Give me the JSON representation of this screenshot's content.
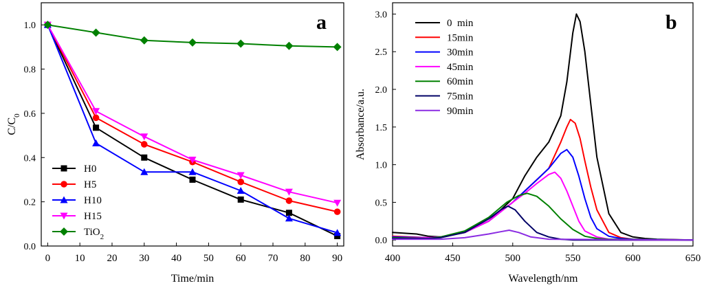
{
  "chart_data": [
    {
      "type": "line",
      "panel_label": "a",
      "xlabel": "Time/min",
      "ylabel": "C/C",
      "ylabel_sub": "0",
      "xlim": [
        -2,
        92
      ],
      "ylim": [
        0,
        1.1
      ],
      "xticks": [
        0,
        10,
        20,
        30,
        40,
        50,
        60,
        70,
        80,
        90
      ],
      "yticks": [
        0.0,
        0.2,
        0.4,
        0.6,
        0.8,
        1.0
      ],
      "ytick_labels": [
        "0.0",
        "0.2",
        "0.4",
        "0.6",
        "0.8",
        "1.0"
      ],
      "legend_position": "bottom-left",
      "series": [
        {
          "name": "H0",
          "color": "#000000",
          "marker": "square",
          "x": [
            0,
            15,
            30,
            45,
            60,
            75,
            90
          ],
          "values": [
            1.0,
            0.535,
            0.4,
            0.3,
            0.21,
            0.15,
            0.045
          ]
        },
        {
          "name": "H5",
          "color": "#ff0000",
          "marker": "circle",
          "x": [
            0,
            15,
            30,
            45,
            60,
            75,
            90
          ],
          "values": [
            1.0,
            0.58,
            0.46,
            0.38,
            0.29,
            0.205,
            0.155
          ]
        },
        {
          "name": "H10",
          "color": "#0000ff",
          "marker": "triangle-up",
          "x": [
            0,
            15,
            30,
            45,
            60,
            75,
            90
          ],
          "values": [
            1.0,
            0.465,
            0.335,
            0.335,
            0.25,
            0.125,
            0.06
          ]
        },
        {
          "name": "H15",
          "color": "#ff00ff",
          "marker": "triangle-down",
          "x": [
            0,
            15,
            30,
            45,
            60,
            75,
            90
          ],
          "values": [
            1.0,
            0.61,
            0.495,
            0.39,
            0.32,
            0.245,
            0.195
          ]
        },
        {
          "name": "TiO",
          "name_sub": "2",
          "color": "#008000",
          "marker": "diamond",
          "x": [
            0,
            15,
            30,
            45,
            60,
            75,
            90
          ],
          "values": [
            1.0,
            0.965,
            0.93,
            0.92,
            0.915,
            0.905,
            0.9
          ]
        }
      ]
    },
    {
      "type": "line",
      "panel_label": "b",
      "xlabel": "Wavelength/nm",
      "ylabel": "Absorbance/a.u.",
      "xlim": [
        400,
        650
      ],
      "ylim": [
        -0.08,
        3.15
      ],
      "xticks": [
        400,
        450,
        500,
        550,
        600,
        650
      ],
      "yticks": [
        0.0,
        0.5,
        1.0,
        1.5,
        2.0,
        2.5,
        3.0
      ],
      "ytick_labels": [
        "0.0",
        "0.5",
        "1.0",
        "1.5",
        "2.0",
        "2.5",
        "3.0"
      ],
      "legend_position": "top-left",
      "series": [
        {
          "name": "0  min",
          "color": "#000000",
          "x": [
            400,
            420,
            430,
            440,
            460,
            480,
            500,
            510,
            520,
            530,
            540,
            545,
            550,
            553,
            556,
            560,
            565,
            570,
            580,
            590,
            600,
            610,
            620,
            650
          ],
          "values": [
            0.1,
            0.08,
            0.05,
            0.04,
            0.1,
            0.25,
            0.55,
            0.85,
            1.1,
            1.3,
            1.65,
            2.1,
            2.75,
            3.0,
            2.9,
            2.5,
            1.8,
            1.1,
            0.35,
            0.1,
            0.04,
            0.02,
            0.01,
            0.0
          ]
        },
        {
          "name": "15min",
          "color": "#ff0000",
          "x": [
            400,
            430,
            440,
            460,
            480,
            500,
            510,
            520,
            530,
            540,
            545,
            548,
            552,
            556,
            560,
            565,
            570,
            580,
            590,
            600,
            650
          ],
          "values": [
            0.05,
            0.03,
            0.04,
            0.1,
            0.25,
            0.5,
            0.65,
            0.8,
            0.95,
            1.3,
            1.5,
            1.6,
            1.55,
            1.35,
            1.05,
            0.7,
            0.4,
            0.1,
            0.03,
            0.01,
            0.0
          ]
        },
        {
          "name": "30min",
          "color": "#0000ff",
          "x": [
            400,
            430,
            440,
            460,
            480,
            500,
            510,
            520,
            530,
            540,
            545,
            550,
            555,
            560,
            565,
            570,
            580,
            590,
            600,
            650
          ],
          "values": [
            0.04,
            0.03,
            0.04,
            0.1,
            0.25,
            0.5,
            0.65,
            0.8,
            0.95,
            1.15,
            1.2,
            1.1,
            0.85,
            0.55,
            0.3,
            0.15,
            0.05,
            0.02,
            0.01,
            0.0
          ]
        },
        {
          "name": "45min",
          "color": "#ff00ff",
          "x": [
            400,
            430,
            440,
            460,
            480,
            500,
            510,
            520,
            530,
            535,
            540,
            545,
            550,
            555,
            560,
            570,
            580,
            590,
            650
          ],
          "values": [
            0.03,
            0.03,
            0.04,
            0.1,
            0.25,
            0.5,
            0.62,
            0.75,
            0.87,
            0.9,
            0.82,
            0.65,
            0.45,
            0.25,
            0.12,
            0.04,
            0.01,
            0.0,
            0.0
          ]
        },
        {
          "name": "60min",
          "color": "#008000",
          "x": [
            400,
            430,
            440,
            460,
            480,
            495,
            505,
            512,
            520,
            530,
            540,
            550,
            560,
            570,
            580,
            650
          ],
          "values": [
            0.03,
            0.02,
            0.04,
            0.12,
            0.3,
            0.5,
            0.59,
            0.62,
            0.58,
            0.45,
            0.28,
            0.14,
            0.05,
            0.02,
            0.01,
            0.0
          ]
        },
        {
          "name": "75min",
          "color": "#000066",
          "x": [
            400,
            430,
            440,
            460,
            480,
            490,
            496,
            502,
            510,
            520,
            530,
            540,
            550,
            650
          ],
          "values": [
            0.02,
            0.02,
            0.03,
            0.1,
            0.28,
            0.4,
            0.45,
            0.4,
            0.25,
            0.1,
            0.04,
            0.01,
            0.0,
            0.0
          ]
        },
        {
          "name": "90min",
          "color": "#8a2be2",
          "x": [
            400,
            440,
            460,
            480,
            490,
            497,
            505,
            515,
            530,
            650
          ],
          "values": [
            0.01,
            0.01,
            0.03,
            0.08,
            0.11,
            0.13,
            0.1,
            0.04,
            0.01,
            0.0
          ]
        }
      ]
    }
  ]
}
